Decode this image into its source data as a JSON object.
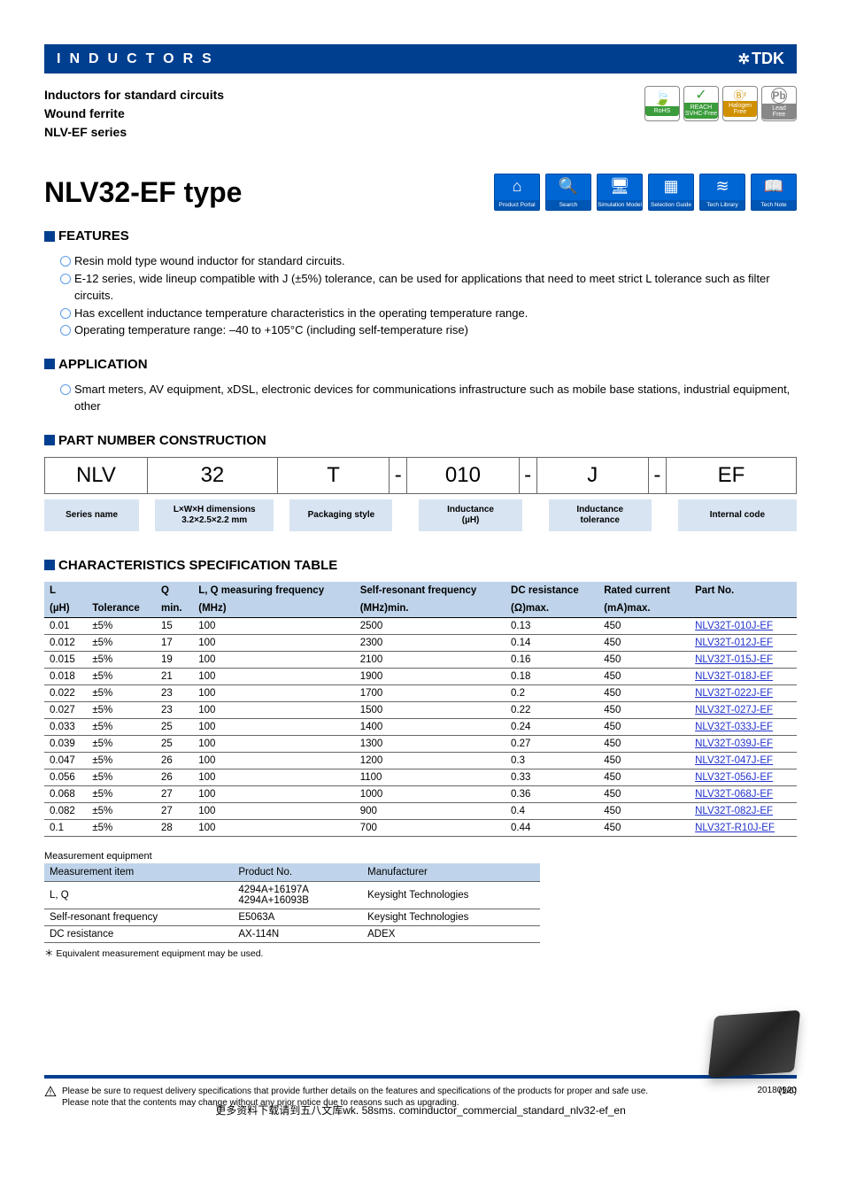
{
  "topbar": {
    "title": "INDUCTORS",
    "brand": "TDK"
  },
  "intro": {
    "line1": "Inductors for standard circuits",
    "line2": "Wound ferrite",
    "line3": "NLV-EF series"
  },
  "badges": [
    {
      "name": "rohs",
      "glyph": "🍃",
      "label": "RoHS"
    },
    {
      "name": "reach",
      "glyph": "✓",
      "label": "REACH\nSVHC-Free"
    },
    {
      "name": "hal",
      "glyph": "Ⓑʳ",
      "label": "Halogen\nFree"
    },
    {
      "name": "pb",
      "glyph": "Pb",
      "label": "Lead\nFree"
    }
  ],
  "main_title": "NLV32-EF type",
  "nav_icons": [
    {
      "name": "product-portal",
      "glyph": "⌂",
      "label": "Product Portal"
    },
    {
      "name": "search",
      "glyph": "🔍",
      "label": "Search"
    },
    {
      "name": "sim-model",
      "glyph": "🖥",
      "label": "Simulation Model"
    },
    {
      "name": "sel-guide",
      "glyph": "▦",
      "label": "Selection Guide"
    },
    {
      "name": "tech-library",
      "glyph": "≋",
      "label": "Tech Library"
    },
    {
      "name": "tech-note",
      "glyph": "📖",
      "label": "Tech Note"
    }
  ],
  "sections": {
    "features": "FEATURES",
    "application": "APPLICATION",
    "pnc": "PART NUMBER CONSTRUCTION",
    "cst": "CHARACTERISTICS SPECIFICATION TABLE"
  },
  "features": [
    "Resin mold type wound inductor for standard circuits.",
    "E-12 series, wide lineup compatible with J (±5%) tolerance, can be used for applications that need to meet strict L tolerance such as filter circuits.",
    "Has excellent inductance temperature characteristics in the operating temperature range.",
    "Operating temperature range: –40 to +105°C (including self-temperature rise)"
  ],
  "applications": [
    "Smart meters, AV equipment, xDSL, electronic devices for communications infrastructure such as mobile base stations, industrial equipment, other"
  ],
  "pnc": {
    "cells": [
      "NLV",
      "32",
      "T",
      "010",
      "J",
      "EF"
    ],
    "labels": [
      "Series name",
      "L×W×H dimensions\n3.2×2.5×2.2 mm",
      "Packaging style",
      "Inductance\n(µH)",
      "Inductance\ntolerance",
      "Internal code"
    ]
  },
  "spec_table": {
    "head_row1": [
      "L",
      "",
      "Q",
      "L, Q measuring frequency",
      "Self-resonant frequency",
      "DC resistance",
      "Rated current",
      "Part No."
    ],
    "head_row2": [
      "(µH)",
      "Tolerance",
      "min.",
      "(MHz)",
      "(MHz)min.",
      "(Ω)max.",
      "(mA)max.",
      ""
    ],
    "rows": [
      [
        "0.01",
        "±5%",
        "15",
        "100",
        "2500",
        "0.13",
        "450",
        "NLV32T-010J-EF"
      ],
      [
        "0.012",
        "±5%",
        "17",
        "100",
        "2300",
        "0.14",
        "450",
        "NLV32T-012J-EF"
      ],
      [
        "0.015",
        "±5%",
        "19",
        "100",
        "2100",
        "0.16",
        "450",
        "NLV32T-015J-EF"
      ],
      [
        "0.018",
        "±5%",
        "21",
        "100",
        "1900",
        "0.18",
        "450",
        "NLV32T-018J-EF"
      ],
      [
        "0.022",
        "±5%",
        "23",
        "100",
        "1700",
        "0.2",
        "450",
        "NLV32T-022J-EF"
      ],
      [
        "0.027",
        "±5%",
        "23",
        "100",
        "1500",
        "0.22",
        "450",
        "NLV32T-027J-EF"
      ],
      [
        "0.033",
        "±5%",
        "25",
        "100",
        "1400",
        "0.24",
        "450",
        "NLV32T-033J-EF"
      ],
      [
        "0.039",
        "±5%",
        "25",
        "100",
        "1300",
        "0.27",
        "450",
        "NLV32T-039J-EF"
      ],
      [
        "0.047",
        "±5%",
        "26",
        "100",
        "1200",
        "0.3",
        "450",
        "NLV32T-047J-EF"
      ],
      [
        "0.056",
        "±5%",
        "26",
        "100",
        "1100",
        "0.33",
        "450",
        "NLV32T-056J-EF"
      ],
      [
        "0.068",
        "±5%",
        "27",
        "100",
        "1000",
        "0.36",
        "450",
        "NLV32T-068J-EF"
      ],
      [
        "0.082",
        "±5%",
        "27",
        "100",
        "900",
        "0.4",
        "450",
        "NLV32T-082J-EF"
      ],
      [
        "0.1",
        "±5%",
        "28",
        "100",
        "700",
        "0.44",
        "450",
        "NLV32T-R10J-EF"
      ]
    ]
  },
  "meas_caption": "Measurement equipment",
  "meas_table": {
    "head": [
      "Measurement item",
      "Product No.",
      "Manufacturer"
    ],
    "rows": [
      [
        "L, Q",
        "4294A+16197A\n4294A+16093B",
        "Keysight Technologies"
      ],
      [
        "Self-resonant frequency",
        "E5063A",
        "Keysight Technologies"
      ],
      [
        "DC resistance",
        "AX-114N",
        "ADEX"
      ]
    ]
  },
  "meas_footnote": "＊ Equivalent measurement equipment may be used.",
  "disclaimer": "Please be sure to request delivery specifications that provide further details on the features and specifications of the products for proper and safe use.\nPlease note that the contents may change without any prior notice due to reasons such as upgrading.",
  "page_num": "(1/6)",
  "date": "20180920",
  "doc_id": "inductor_commercial_standard_nlv32-ef_en",
  "bottom_cn": "更多资料下载请到五八文库wk. 58sms. com",
  "colors": {
    "primary": "#003e8f",
    "nav_blue": "#0066d4",
    "table_header": "#bfd4ea",
    "label_box": "#d8e4f2",
    "link": "#2233cc"
  }
}
